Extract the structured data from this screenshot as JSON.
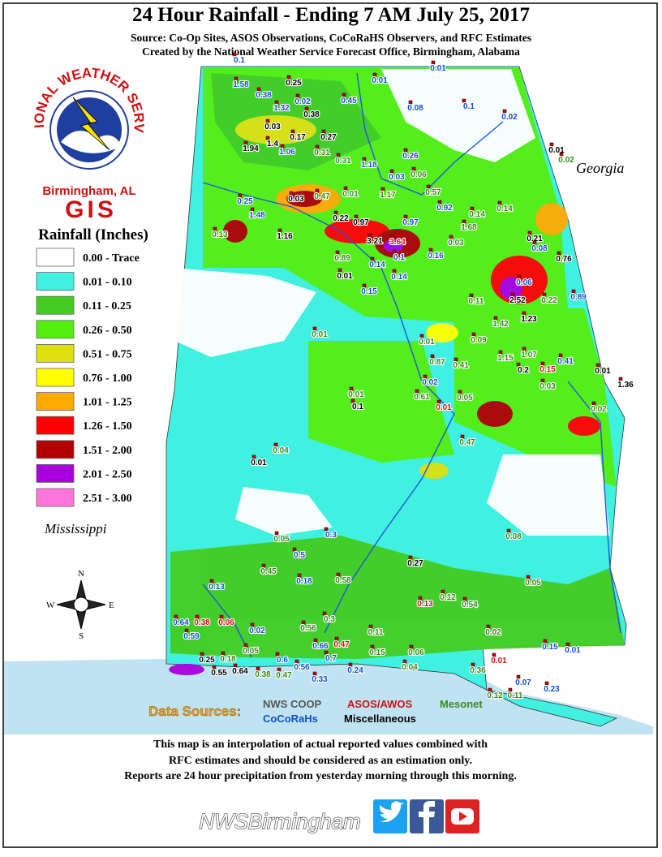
{
  "header": {
    "title": "24 Hour Rainfall - Ending 7 AM July 25, 2017",
    "subtitle_lines": [
      "Source: Co-Op Sites, ASOS Observations, CoCoRaHS Observers, and RFC Estimates",
      "Created by the National Weather Service Forecast Office, Birmingham, Alabama"
    ]
  },
  "logo": {
    "arc_text": "NATIONAL WEATHER SERVICE",
    "office": "Birmingham, AL",
    "unit": "GIS"
  },
  "legend": {
    "title": "Rainfall (Inches)",
    "items": [
      {
        "label": "0.00 - Trace",
        "color": "#ffffff"
      },
      {
        "label": "0.01 - 0.10",
        "color": "#40f0e0"
      },
      {
        "label": "0.11 - 0.25",
        "color": "#44cc22"
      },
      {
        "label": "0.26 - 0.50",
        "color": "#55ee11"
      },
      {
        "label": "0.51 - 0.75",
        "color": "#dde011"
      },
      {
        "label": "0.76 - 1.00",
        "color": "#ffff00"
      },
      {
        "label": "1.01 - 1.25",
        "color": "#ffaa00"
      },
      {
        "label": "1.26 - 1.50",
        "color": "#ff0000"
      },
      {
        "label": "1.51 - 2.00",
        "color": "#b00000"
      },
      {
        "label": "2.01 - 2.50",
        "color": "#aa00dd"
      },
      {
        "label": "2.51 - 3.00",
        "color": "#ff77dd"
      }
    ]
  },
  "compass": {
    "n": "N",
    "e": "E",
    "s": "S",
    "w": "W"
  },
  "state_labels": {
    "east": "Georgia",
    "west": "Mississippi"
  },
  "data_sources": {
    "label": "Data Sources:",
    "sources": [
      {
        "label": "NWS COOP",
        "color": "#555555"
      },
      {
        "label": "ASOS/AWOS",
        "color": "#d01010"
      },
      {
        "label": "Mesonet",
        "color": "#3a8a1a"
      },
      {
        "label": "CoCoRaHs",
        "color": "#1050d0"
      },
      {
        "label": "Miscellaneous",
        "color": "#000000"
      }
    ]
  },
  "disclaimer": [
    "This map is an interpolation of actual reported values combined with",
    "RFC estimates and should be considered as an estimation only.",
    "Reports are 24 hour precipitation from yesterday morning through this morning."
  ],
  "footer": {
    "handle": "NWSBirmingham"
  },
  "readings": [
    {
      "text": "0.1",
      "color": "#1050d0"
    },
    {
      "text": "1.58",
      "color": "#1050d0"
    },
    {
      "text": "0.38",
      "color": "#1050d0"
    },
    {
      "text": "0.25",
      "color": "#000000"
    },
    {
      "text": "0.02",
      "color": "#1050d0"
    },
    {
      "text": "1.32",
      "color": "#1050d0"
    },
    {
      "text": "0.38",
      "color": "#000000"
    },
    {
      "text": "0.45",
      "color": "#1050d0"
    },
    {
      "text": "0.01",
      "color": "#1050d0"
    },
    {
      "text": "0.08",
      "color": "#1050d0"
    },
    {
      "text": "0.01",
      "color": "#1050d0"
    },
    {
      "text": "0.1",
      "color": "#1050d0"
    },
    {
      "text": "0.02",
      "color": "#1050d0"
    },
    {
      "text": "0.03",
      "color": "#000000"
    },
    {
      "text": "0.17",
      "color": "#000000"
    },
    {
      "text": "0.27",
      "color": "#000000"
    },
    {
      "text": "1.94",
      "color": "#000000"
    },
    {
      "text": "1.4",
      "color": "#000000"
    },
    {
      "text": "1.06",
      "color": "#1050d0"
    },
    {
      "text": "0.31",
      "color": "#3a8a1a"
    },
    {
      "text": "0.31",
      "color": "#3a8a1a"
    },
    {
      "text": "1.18",
      "color": "#1050d0"
    },
    {
      "text": "0.03",
      "color": "#1050d0"
    },
    {
      "text": "0.06",
      "color": "#3a8a1a"
    },
    {
      "text": "0.26",
      "color": "#1050d0"
    },
    {
      "text": "0.01",
      "color": "#000000"
    },
    {
      "text": "0.02",
      "color": "#3a8a1a"
    },
    {
      "text": "1.17",
      "color": "#3a8a1a"
    },
    {
      "text": "0.57",
      "color": "#3a8a1a"
    },
    {
      "text": "0.03",
      "color": "#000000"
    },
    {
      "text": "0.47",
      "color": "#3a8a1a"
    },
    {
      "text": "0.01",
      "color": "#3a8a1a"
    },
    {
      "text": "0.25",
      "color": "#1050d0"
    },
    {
      "text": "1.48",
      "color": "#1050d0"
    },
    {
      "text": "0.92",
      "color": "#1050d0"
    },
    {
      "text": "0.14",
      "color": "#3a8a1a"
    },
    {
      "text": "0.14",
      "color": "#3a8a1a"
    },
    {
      "text": "0.22",
      "color": "#000000"
    },
    {
      "text": "0.97",
      "color": "#000000"
    },
    {
      "text": "0.97",
      "color": "#1050d0"
    },
    {
      "text": "1.16",
      "color": "#000000"
    },
    {
      "text": "0.13",
      "color": "#3a8a1a"
    },
    {
      "text": "3.21",
      "color": "#000000"
    },
    {
      "text": "3.64",
      "color": "#d01010"
    },
    {
      "text": "1.68",
      "color": "#3a8a1a"
    },
    {
      "text": "0.03",
      "color": "#3a8a1a"
    },
    {
      "text": "0.21",
      "color": "#000000"
    },
    {
      "text": "0.08",
      "color": "#1050d0"
    },
    {
      "text": "0.76",
      "color": "#000000"
    },
    {
      "text": "0.89",
      "color": "#3a8a1a"
    },
    {
      "text": "0.14",
      "color": "#1050d0"
    },
    {
      "text": "0.1",
      "color": "#1050d0"
    },
    {
      "text": "0.16",
      "color": "#1050d0"
    },
    {
      "text": "0.01",
      "color": "#000000"
    },
    {
      "text": "0.14",
      "color": "#1050d0"
    },
    {
      "text": "0.15",
      "color": "#1050d0"
    },
    {
      "text": "0.06",
      "color": "#1050d0"
    },
    {
      "text": "2.52",
      "color": "#000000"
    },
    {
      "text": "0.22",
      "color": "#3a8a1a"
    },
    {
      "text": "0.89",
      "color": "#1050d0"
    },
    {
      "text": "0.11",
      "color": "#3a8a1a"
    },
    {
      "text": "1.42",
      "color": "#3a8a1a"
    },
    {
      "text": "1.23",
      "color": "#000000"
    },
    {
      "text": "0.01",
      "color": "#3a8a1a"
    },
    {
      "text": "0.01",
      "color": "#3a8a1a"
    },
    {
      "text": "0.09",
      "color": "#3a8a1a"
    },
    {
      "text": "1.15",
      "color": "#3a8a1a"
    },
    {
      "text": "1.07",
      "color": "#3a8a1a"
    },
    {
      "text": "0.41",
      "color": "#1050d0"
    },
    {
      "text": "0.87",
      "color": "#3a8a1a"
    },
    {
      "text": "0.41",
      "color": "#3a8a1a"
    },
    {
      "text": "0.2",
      "color": "#000000"
    },
    {
      "text": "0.15",
      "color": "#d01010"
    },
    {
      "text": "0.01",
      "color": "#000000"
    },
    {
      "text": "1.36",
      "color": "#000000"
    },
    {
      "text": "0.03",
      "color": "#3a8a1a"
    },
    {
      "text": "0.02",
      "color": "#1050d0"
    },
    {
      "text": "0.1",
      "color": "#000000"
    },
    {
      "text": "0.01",
      "color": "#3a8a1a"
    },
    {
      "text": "0.61",
      "color": "#3a8a1a"
    },
    {
      "text": "0.01",
      "color": "#d01010"
    },
    {
      "text": "0.05",
      "color": "#3a8a1a"
    },
    {
      "text": "0.02",
      "color": "#3a8a1a"
    },
    {
      "text": "0.47",
      "color": "#3a8a1a"
    },
    {
      "text": "0.04",
      "color": "#3a8a1a"
    },
    {
      "text": "0.01",
      "color": "#000000"
    },
    {
      "text": "0.05",
      "color": "#3a8a1a"
    },
    {
      "text": "0.3",
      "color": "#1050d0"
    },
    {
      "text": "0.08",
      "color": "#3a8a1a"
    },
    {
      "text": "0.45",
      "color": "#3a8a1a"
    },
    {
      "text": "0.5",
      "color": "#1050d0"
    },
    {
      "text": "0.18",
      "color": "#1050d0"
    },
    {
      "text": "0.58",
      "color": "#3a8a1a"
    },
    {
      "text": "0.27",
      "color": "#000000"
    },
    {
      "text": "0.05",
      "color": "#3a8a1a"
    },
    {
      "text": "0.13",
      "color": "#1050d0"
    },
    {
      "text": "0.12",
      "color": "#3a8a1a"
    },
    {
      "text": "0.54",
      "color": "#3a8a1a"
    },
    {
      "text": "0.13",
      "color": "#d01010"
    },
    {
      "text": "0.06",
      "color": "#d01010"
    },
    {
      "text": "0.38",
      "color": "#d01010"
    },
    {
      "text": "0.64",
      "color": "#1050d0"
    },
    {
      "text": "0.59",
      "color": "#1050d0"
    },
    {
      "text": "0.02",
      "color": "#1050d0"
    },
    {
      "text": "0.3",
      "color": "#3a8a1a"
    },
    {
      "text": "0.56",
      "color": "#3a8a1a"
    },
    {
      "text": "0.11",
      "color": "#3a8a1a"
    },
    {
      "text": "0.02",
      "color": "#3a8a1a"
    },
    {
      "text": "0.15",
      "color": "#1050d0"
    },
    {
      "text": "0.01",
      "color": "#1050d0"
    },
    {
      "text": "0.47",
      "color": "#d01010"
    },
    {
      "text": "0.66",
      "color": "#1050d0"
    },
    {
      "text": "0.15",
      "color": "#3a8a1a"
    },
    {
      "text": "0.06",
      "color": "#3a8a1a"
    },
    {
      "text": "0.05",
      "color": "#3a8a1a"
    },
    {
      "text": "0.6",
      "color": "#1050d0"
    },
    {
      "text": "0.56",
      "color": "#1050d0"
    },
    {
      "text": "0.7",
      "color": "#1050d0"
    },
    {
      "text": "0.25",
      "color": "#000000"
    },
    {
      "text": "0.18",
      "color": "#3a8a1a"
    },
    {
      "text": "0.01",
      "color": "#d01010"
    },
    {
      "text": "0.55",
      "color": "#000000"
    },
    {
      "text": "0.64",
      "color": "#000000"
    },
    {
      "text": "0.38",
      "color": "#3a8a1a"
    },
    {
      "text": "0.47",
      "color": "#3a8a1a"
    },
    {
      "text": "0.33",
      "color": "#1050d0"
    },
    {
      "text": "0.24",
      "color": "#1050d0"
    },
    {
      "text": "0.04",
      "color": "#3a8a1a"
    },
    {
      "text": "0.36",
      "color": "#3a8a1a"
    },
    {
      "text": "0.07",
      "color": "#1050d0"
    },
    {
      "text": "0.23",
      "color": "#1050d0"
    },
    {
      "text": "0.12",
      "color": "#3a8a1a"
    },
    {
      "text": "0.11",
      "color": "#3a8a1a"
    }
  ]
}
